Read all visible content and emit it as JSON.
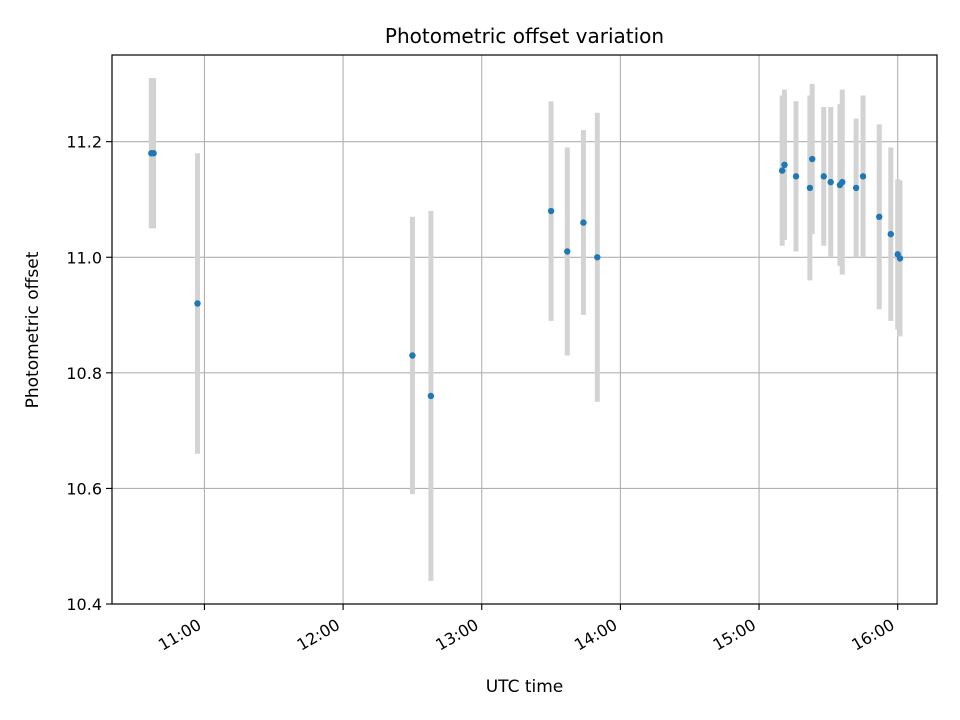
{
  "chart_data": {
    "type": "scatter",
    "title": "Photometric offset variation",
    "xlabel": "UTC time",
    "ylabel": "Photometric offset",
    "x_unit": "HH:MM",
    "xlim": [
      "10:20",
      "16:17"
    ],
    "ylim": [
      10.4,
      11.35
    ],
    "x_ticks": [
      "11:00",
      "12:00",
      "13:00",
      "14:00",
      "15:00",
      "16:00"
    ],
    "y_ticks": [
      "10.4",
      "10.6",
      "10.8",
      "11.0",
      "11.2"
    ],
    "grid": true,
    "colors": {
      "points": "#1f77b4",
      "error_bars": "#d3d3d3",
      "grid": "#b0b0b0"
    },
    "points": [
      {
        "x": "10:37",
        "y": 11.18,
        "err": 0.13
      },
      {
        "x": "10:38",
        "y": 11.18,
        "err": 0.13
      },
      {
        "x": "10:57",
        "y": 10.92,
        "err": 0.26
      },
      {
        "x": "12:30",
        "y": 10.83,
        "err": 0.24
      },
      {
        "x": "12:38",
        "y": 10.76,
        "err": 0.32
      },
      {
        "x": "13:30",
        "y": 11.08,
        "err": 0.19
      },
      {
        "x": "13:37",
        "y": 11.01,
        "err": 0.18
      },
      {
        "x": "13:44",
        "y": 11.06,
        "err": 0.16
      },
      {
        "x": "13:50",
        "y": 11.0,
        "err": 0.25
      },
      {
        "x": "15:10",
        "y": 11.15,
        "err": 0.13
      },
      {
        "x": "15:11",
        "y": 11.16,
        "err": 0.13
      },
      {
        "x": "15:16",
        "y": 11.14,
        "err": 0.13
      },
      {
        "x": "15:22",
        "y": 11.12,
        "err": 0.16
      },
      {
        "x": "15:23",
        "y": 11.17,
        "err": 0.13
      },
      {
        "x": "15:28",
        "y": 11.14,
        "err": 0.12
      },
      {
        "x": "15:31",
        "y": 11.13,
        "err": 0.13
      },
      {
        "x": "15:35",
        "y": 11.125,
        "err": 0.14
      },
      {
        "x": "15:36",
        "y": 11.13,
        "err": 0.16
      },
      {
        "x": "15:42",
        "y": 11.12,
        "err": 0.12
      },
      {
        "x": "15:45",
        "y": 11.14,
        "err": 0.14
      },
      {
        "x": "15:52",
        "y": 11.07,
        "err": 0.16
      },
      {
        "x": "15:57",
        "y": 11.04,
        "err": 0.15
      },
      {
        "x": "16:00",
        "y": 11.005,
        "err": 0.13
      },
      {
        "x": "16:01",
        "y": 10.998,
        "err": 0.135
      }
    ]
  }
}
